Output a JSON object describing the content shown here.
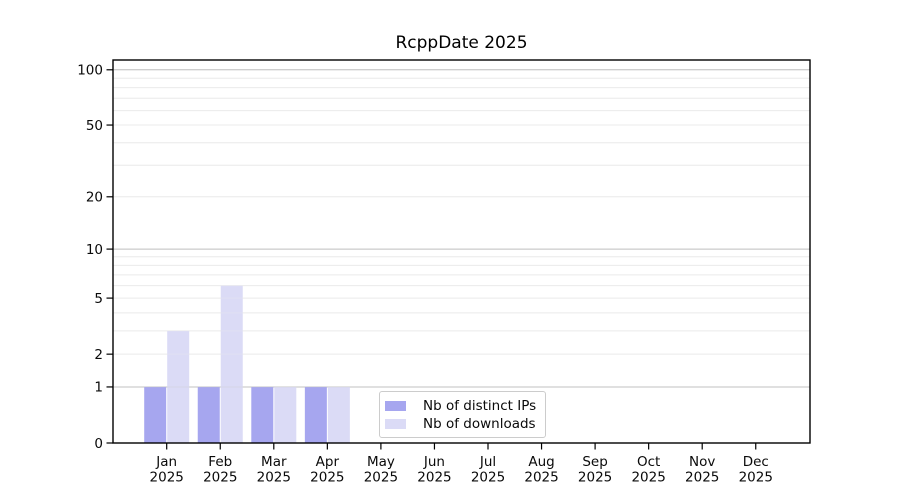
{
  "figure": {
    "background": "#ffffff"
  },
  "chart_data": {
    "type": "bar",
    "title": "RcppDate 2025",
    "x_months": [
      "Jan",
      "Feb",
      "Mar",
      "Apr",
      "May",
      "Jun",
      "Jul",
      "Aug",
      "Sep",
      "Oct",
      "Nov",
      "Dec"
    ],
    "x_year": "2025",
    "series": [
      {
        "name": "Nb of distinct IPs",
        "color": "#a6a6ef",
        "values": [
          1,
          1,
          1,
          1,
          0,
          0,
          0,
          0,
          0,
          0,
          0,
          0
        ]
      },
      {
        "name": "Nb of downloads",
        "color": "#dbdbf6",
        "values": [
          3,
          6,
          1,
          1,
          0,
          0,
          0,
          0,
          0,
          0,
          0,
          0
        ]
      }
    ],
    "y_axis": {
      "scale": "log1p",
      "tick_values": [
        0,
        1,
        2,
        5,
        10,
        20,
        50,
        100
      ],
      "tick_labels": [
        "0",
        "1",
        "2",
        "5",
        "10",
        "20",
        "50",
        "100"
      ],
      "major_grid_values": [
        1,
        10,
        100
      ],
      "minor_grid_values": [
        2,
        3,
        4,
        5,
        6,
        7,
        8,
        9,
        20,
        30,
        40,
        50,
        60,
        70,
        80,
        90
      ],
      "top_value": 113
    },
    "grid": {
      "major_color": "#c2c2c2",
      "minor_color": "#ebebeb",
      "grid_on": true
    },
    "axes": {
      "spine_color": "#000000",
      "tick_color": "#000000"
    },
    "legend_position": "bottom-center"
  },
  "legend": {
    "items": [
      {
        "label": "Nb of distinct IPs",
        "color": "#a6a6ef"
      },
      {
        "label": "Nb of downloads",
        "color": "#dbdbf6"
      }
    ]
  }
}
